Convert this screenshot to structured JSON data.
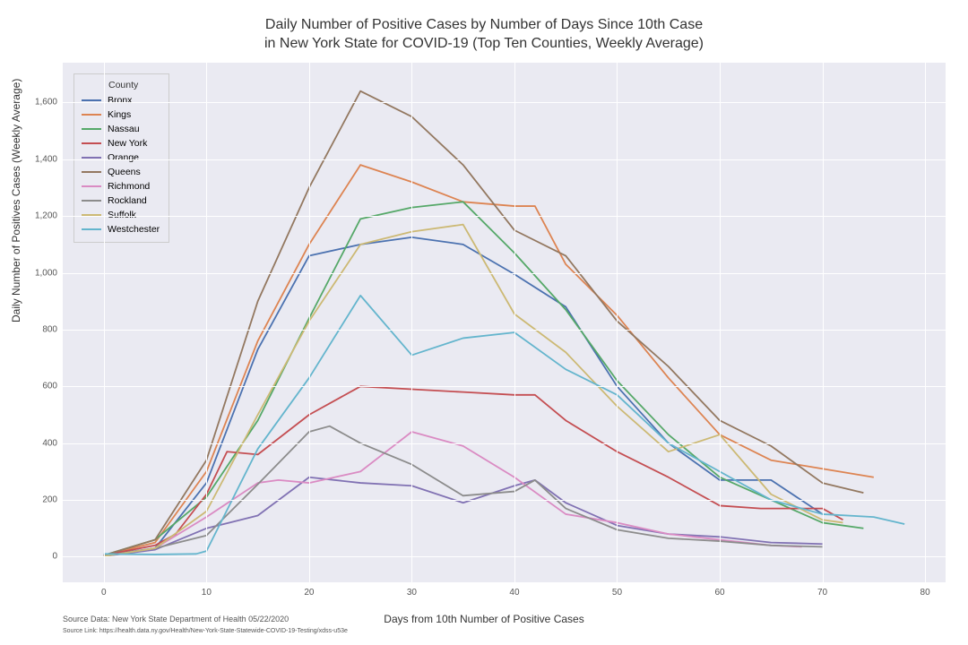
{
  "title_line1": "Daily Number of Positive Cases by Number of Days Since 10th Case",
  "title_line2": "in New York State for COVID-19 (Top Ten Counties, Weekly Average)",
  "x_label": "Days from 10th Number of Positive Cases",
  "y_label": "Daily Number of Positives Cases (Weekly Average)",
  "source_text": "Source Data: New York State Department of Health 05/22/2020",
  "source_link": "Source Link: https://health.data.ny.gov/Health/New-York-State-Statewide-COVID-19-Testing/xdss-u53e",
  "legend_title": "County",
  "background_color": "#eaeaf2",
  "grid_color": "#ffffff",
  "xlim": [
    -4,
    82
  ],
  "ylim": [
    -90,
    1740
  ],
  "xticks": [
    0,
    10,
    20,
    30,
    40,
    50,
    60,
    70,
    80
  ],
  "yticks": [
    0,
    200,
    400,
    600,
    800,
    1000,
    1200,
    1400,
    1600
  ],
  "ytick_labels": [
    "0",
    "200",
    "400",
    "600",
    "800",
    "1,000",
    "1,200",
    "1,400",
    "1,600"
  ],
  "line_width": 1.8,
  "series": [
    {
      "name": "Bronx",
      "color": "#4c72b0",
      "x": [
        0,
        5,
        10,
        15,
        20,
        25,
        30,
        35,
        40,
        45,
        50,
        55,
        60,
        65,
        70
      ],
      "y": [
        5,
        30,
        260,
        730,
        1060,
        1100,
        1125,
        1100,
        995,
        880,
        600,
        400,
        270,
        270,
        150
      ]
    },
    {
      "name": "Kings",
      "color": "#dd8452",
      "x": [
        0,
        5,
        10,
        15,
        20,
        25,
        30,
        35,
        40,
        42,
        45,
        50,
        55,
        60,
        65,
        70,
        75
      ],
      "y": [
        5,
        50,
        300,
        760,
        1100,
        1380,
        1320,
        1250,
        1235,
        1235,
        1030,
        850,
        630,
        430,
        340,
        310,
        280
      ]
    },
    {
      "name": "Nassau",
      "color": "#55a868",
      "x": [
        0,
        5,
        10,
        15,
        20,
        25,
        30,
        35,
        40,
        45,
        50,
        55,
        60,
        65,
        70,
        74
      ],
      "y": [
        5,
        60,
        210,
        480,
        840,
        1190,
        1230,
        1250,
        1070,
        870,
        620,
        430,
        280,
        200,
        120,
        100
      ]
    },
    {
      "name": "New York",
      "color": "#c44e52",
      "x": [
        0,
        5,
        7,
        10,
        12,
        15,
        20,
        25,
        30,
        35,
        40,
        42,
        45,
        50,
        55,
        60,
        64,
        70,
        72
      ],
      "y": [
        5,
        40,
        80,
        220,
        370,
        360,
        500,
        600,
        590,
        580,
        570,
        570,
        480,
        370,
        280,
        180,
        170,
        170,
        130
      ]
    },
    {
      "name": "Orange",
      "color": "#8172b3",
      "x": [
        0,
        5,
        10,
        15,
        20,
        25,
        30,
        35,
        40,
        42,
        45,
        50,
        55,
        60,
        65,
        70
      ],
      "y": [
        2,
        25,
        100,
        145,
        280,
        260,
        250,
        190,
        250,
        270,
        190,
        110,
        80,
        70,
        50,
        45
      ]
    },
    {
      "name": "Queens",
      "color": "#937860",
      "x": [
        0,
        5,
        10,
        15,
        20,
        25,
        30,
        35,
        40,
        45,
        50,
        55,
        60,
        65,
        70,
        74
      ],
      "y": [
        5,
        60,
        340,
        900,
        1300,
        1640,
        1550,
        1380,
        1150,
        1060,
        830,
        670,
        480,
        390,
        260,
        225
      ]
    },
    {
      "name": "Richmond",
      "color": "#da8bc3",
      "x": [
        0,
        5,
        10,
        15,
        17,
        20,
        25,
        30,
        35,
        40,
        45,
        50,
        55,
        60,
        65,
        68
      ],
      "y": [
        2,
        30,
        140,
        260,
        270,
        260,
        300,
        440,
        390,
        280,
        150,
        120,
        80,
        60,
        40,
        35
      ]
    },
    {
      "name": "Rockland",
      "color": "#8c8c8c",
      "x": [
        0,
        5,
        10,
        15,
        20,
        22,
        25,
        30,
        35,
        40,
        42,
        45,
        50,
        55,
        60,
        65,
        70
      ],
      "y": [
        2,
        30,
        75,
        255,
        440,
        460,
        400,
        325,
        215,
        230,
        270,
        170,
        95,
        65,
        55,
        40,
        35
      ]
    },
    {
      "name": "Suffolk",
      "color": "#ccb974",
      "x": [
        0,
        5,
        10,
        15,
        20,
        25,
        30,
        35,
        40,
        45,
        50,
        55,
        60,
        65,
        70,
        72
      ],
      "y": [
        2,
        30,
        160,
        500,
        830,
        1100,
        1145,
        1170,
        855,
        720,
        530,
        370,
        430,
        220,
        130,
        120
      ]
    },
    {
      "name": "Westchester",
      "color": "#64b5cd",
      "x": [
        0,
        5,
        9,
        10,
        15,
        20,
        25,
        30,
        35,
        40,
        45,
        50,
        55,
        60,
        65,
        70,
        75,
        78
      ],
      "y": [
        10,
        8,
        10,
        20,
        380,
        630,
        920,
        710,
        770,
        790,
        660,
        570,
        400,
        300,
        200,
        150,
        140,
        115
      ]
    }
  ]
}
